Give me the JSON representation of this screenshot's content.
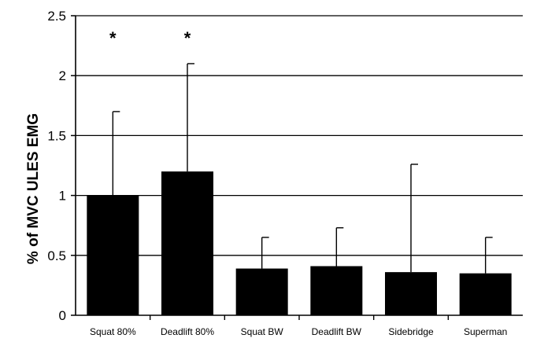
{
  "chart_data": {
    "type": "bar",
    "title": "",
    "xlabel": "",
    "ylabel": "% of MVC ULES EMG",
    "categories": [
      "Squat 80%",
      "Deadlift 80%",
      "Squat BW",
      "Deadlift BW",
      "Sidebridge",
      "Superman"
    ],
    "series": [
      {
        "values": [
          1.0,
          1.2,
          0.39,
          0.41,
          0.36,
          0.35
        ],
        "error_plus": [
          0.7,
          0.9,
          0.26,
          0.32,
          0.9,
          0.3
        ]
      }
    ],
    "annotations": [
      "*",
      "*",
      "",
      "",
      "",
      ""
    ],
    "ylim": [
      0,
      2.5
    ],
    "yticks": [
      "0",
      "0.5",
      "1",
      "1.5",
      "2",
      "2.5"
    ],
    "grid": "horizontal",
    "legend": "none",
    "bar_color": "#000000"
  }
}
